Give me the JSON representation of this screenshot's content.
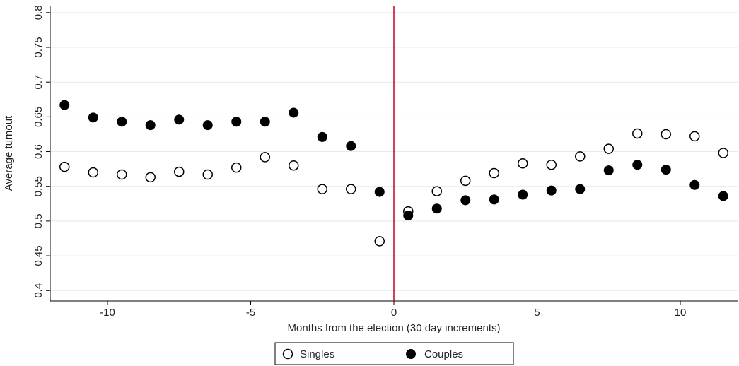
{
  "chart_data": {
    "type": "scatter",
    "title": "",
    "xlabel": "Months from the election (30 day increments)",
    "ylabel": "Average  turnout",
    "xlim": [
      -12,
      12
    ],
    "ylim": [
      0.385,
      0.81
    ],
    "xticks": [
      -10,
      -5,
      0,
      5,
      10
    ],
    "yticks": [
      0.4,
      0.45,
      0.5,
      0.55,
      0.6,
      0.65,
      0.7,
      0.75,
      0.8
    ],
    "ytick_labels": [
      "0.4",
      "0.45",
      "0.5",
      "0.55",
      "0.6",
      "0.65",
      "0.7",
      "0.75",
      "0.8"
    ],
    "grid": true,
    "reference_line": {
      "x": 0,
      "color": "#c8102e"
    },
    "legend_position": "bottom-center",
    "series": [
      {
        "name": "Singles",
        "marker": "hollow-circle",
        "color": "#000000",
        "points": [
          [
            -11.5,
            0.578
          ],
          [
            -10.5,
            0.57
          ],
          [
            -9.5,
            0.567
          ],
          [
            -8.5,
            0.563
          ],
          [
            -7.5,
            0.571
          ],
          [
            -6.5,
            0.567
          ],
          [
            -5.5,
            0.577
          ],
          [
            -4.5,
            0.592
          ],
          [
            -3.5,
            0.58
          ],
          [
            -2.5,
            0.546
          ],
          [
            -1.5,
            0.546
          ],
          [
            -0.5,
            0.471
          ],
          [
            0.5,
            0.514
          ],
          [
            1.5,
            0.543
          ],
          [
            2.5,
            0.558
          ],
          [
            3.5,
            0.569
          ],
          [
            4.5,
            0.583
          ],
          [
            5.5,
            0.581
          ],
          [
            6.5,
            0.593
          ],
          [
            7.5,
            0.604
          ],
          [
            8.5,
            0.626
          ],
          [
            9.5,
            0.625
          ],
          [
            10.5,
            0.622
          ],
          [
            11.5,
            0.598
          ]
        ]
      },
      {
        "name": "Couples",
        "marker": "filled-circle",
        "color": "#000000",
        "points": [
          [
            -11.5,
            0.667
          ],
          [
            -10.5,
            0.649
          ],
          [
            -9.5,
            0.643
          ],
          [
            -8.5,
            0.638
          ],
          [
            -7.5,
            0.646
          ],
          [
            -6.5,
            0.638
          ],
          [
            -5.5,
            0.643
          ],
          [
            -4.5,
            0.643
          ],
          [
            -3.5,
            0.656
          ],
          [
            -2.5,
            0.621
          ],
          [
            -1.5,
            0.608
          ],
          [
            -0.5,
            0.542
          ],
          [
            0.5,
            0.508
          ],
          [
            1.5,
            0.518
          ],
          [
            2.5,
            0.53
          ],
          [
            3.5,
            0.531
          ],
          [
            4.5,
            0.538
          ],
          [
            5.5,
            0.544
          ],
          [
            6.5,
            0.546
          ],
          [
            7.5,
            0.573
          ],
          [
            8.5,
            0.581
          ],
          [
            9.5,
            0.574
          ],
          [
            10.5,
            0.552
          ],
          [
            11.5,
            0.536
          ]
        ]
      }
    ]
  }
}
